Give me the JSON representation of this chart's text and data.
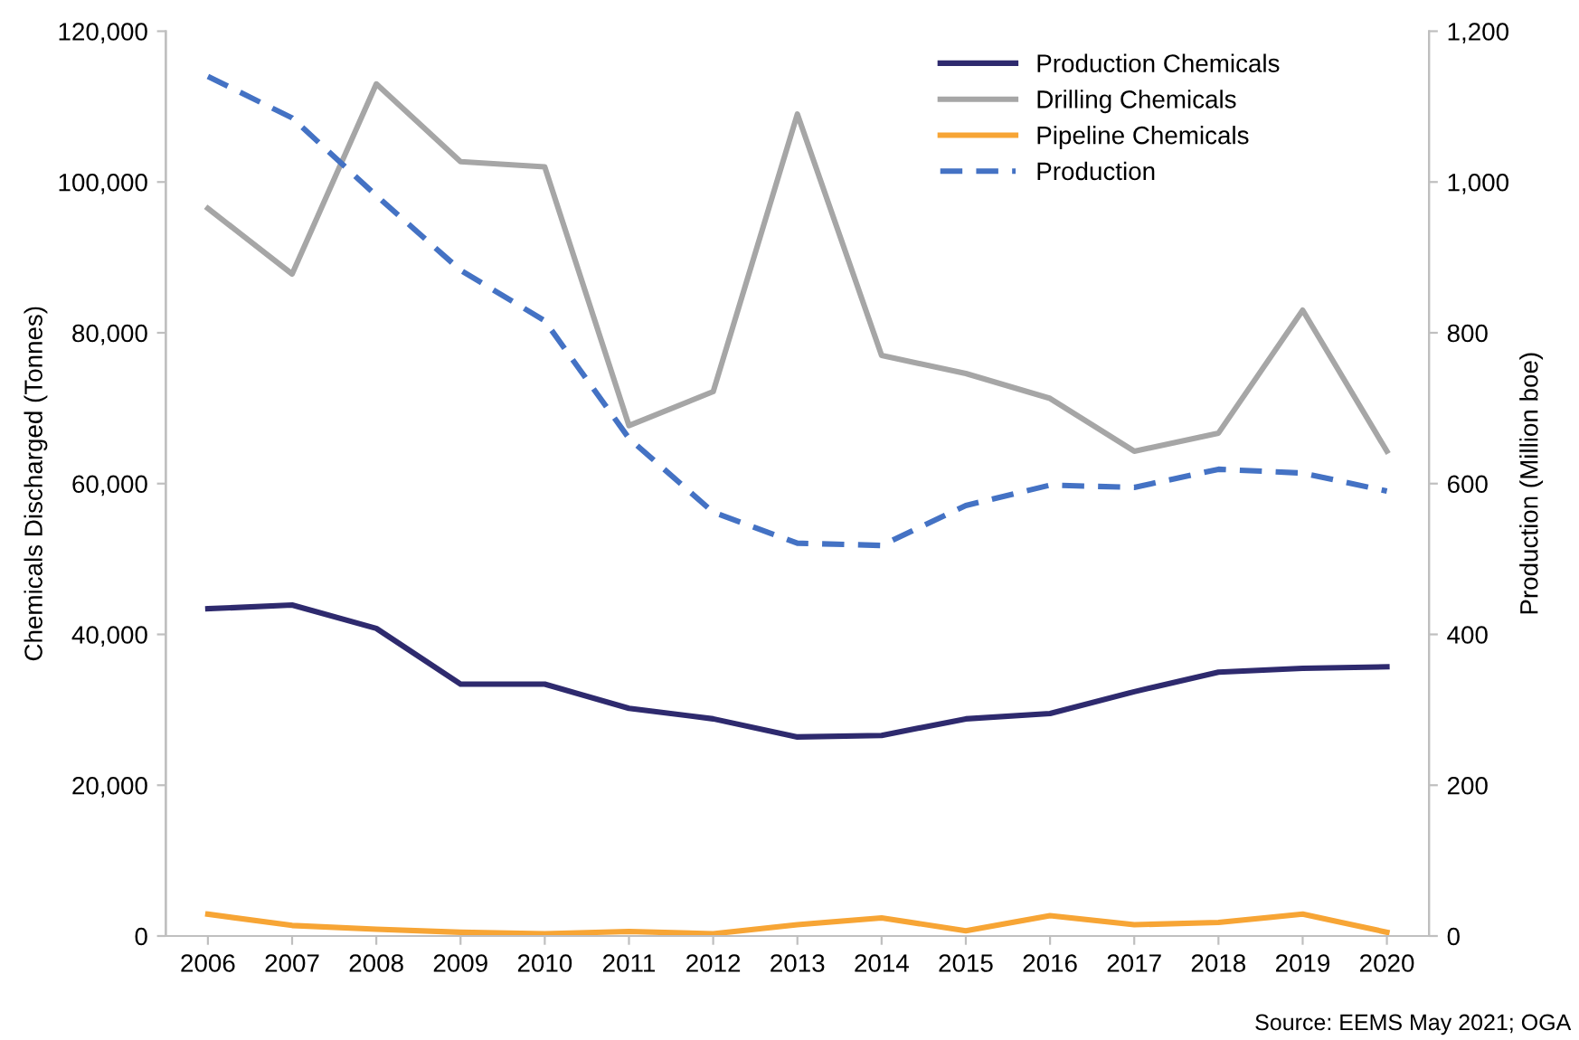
{
  "chart_data": {
    "type": "line",
    "ylabel": "Chemicals Discharged (Tonnes)",
    "y2label": "Production (Million boe)",
    "categories": [
      "2006",
      "2007",
      "2008",
      "2009",
      "2010",
      "2011",
      "2012",
      "2013",
      "2014",
      "2015",
      "2016",
      "2017",
      "2018",
      "2019",
      "2020"
    ],
    "series": [
      {
        "name": "Production Chemicals",
        "color": "#2e2a6e",
        "values": [
          43400,
          43900,
          40800,
          33400,
          33400,
          30200,
          28800,
          26400,
          26600,
          28800,
          29500,
          32400,
          35000,
          35500,
          35700
        ]
      },
      {
        "name": "Drilling Chemicals",
        "color": "#a6a6a6",
        "values": [
          96500,
          87800,
          113000,
          102700,
          102000,
          67700,
          72200,
          109000,
          77000,
          74600,
          71300,
          64300,
          66700,
          83000,
          64300
        ]
      },
      {
        "name": "Pipeline Chemicals",
        "color": "#f7a535",
        "values": [
          2900,
          1400,
          900,
          500,
          300,
          600,
          300,
          1500,
          2400,
          700,
          2700,
          1500,
          1800,
          2900,
          500
        ]
      },
      {
        "name": "Production",
        "color": "#4472c4",
        "axis": "y2",
        "line_style": "dashed",
        "values": [
          1140,
          1085,
          982,
          883,
          816,
          660,
          562,
          521,
          518,
          571,
          598,
          595,
          619,
          614,
          590
        ]
      }
    ],
    "ylim": [
      0,
      120000
    ],
    "yticks": [
      {
        "value": 0,
        "label": "0"
      },
      {
        "value": 20000,
        "label": "20,000"
      },
      {
        "value": 40000,
        "label": "40,000"
      },
      {
        "value": 60000,
        "label": "60,000"
      },
      {
        "value": 80000,
        "label": "80,000"
      },
      {
        "value": 100000,
        "label": "100,000"
      },
      {
        "value": 120000,
        "label": "120,000"
      }
    ],
    "y2lim": [
      0,
      1200
    ],
    "y2ticks": [
      0,
      200,
      400,
      600,
      800,
      {
        "value": 1000,
        "label": "1,000"
      },
      {
        "value": 1200,
        "label": "1,200"
      }
    ],
    "legend": "top right",
    "grid": false,
    "annotations": [
      "Source: EEMS May 2021; OGA"
    ]
  }
}
